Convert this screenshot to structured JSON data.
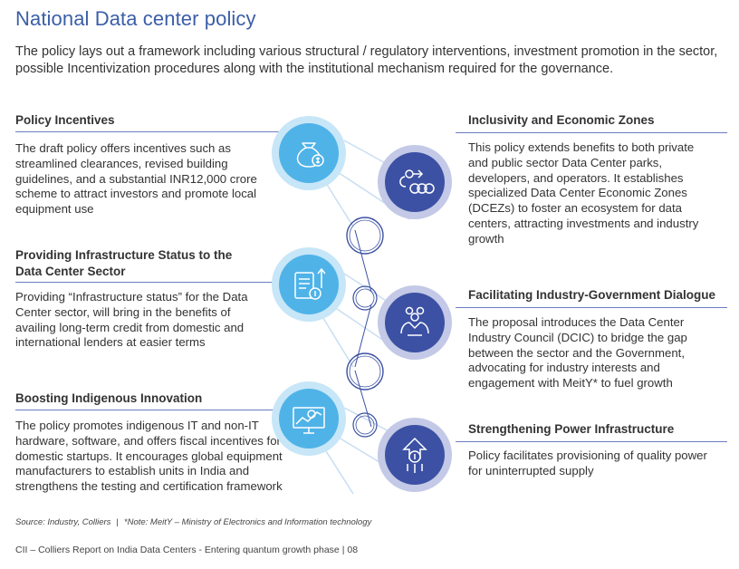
{
  "page": {
    "title": "National Data center policy",
    "intro": "The policy lays out a framework including various structural / regulatory interventions, investment promotion in the sector, possible Incentivization procedures along with the institutional mechanism required for the governance."
  },
  "left_sections": [
    {
      "title": "Policy Incentives",
      "body": "The draft policy offers incentives such as streamlined clearances, revised building guidelines, and a substantial INR12,000 crore scheme to attract investors and promote local equipment use",
      "icon": "money-bag-icon"
    },
    {
      "title": "Providing Infrastructure Status to the Data Center Sector",
      "body": "Providing “Infrastructure status” for the Data Center sector, will bring in the benefits of availing long-term credit from domestic and international lenders at easier terms",
      "icon": "document-growth-icon"
    },
    {
      "title": "Boosting Indigenous Innovation",
      "body": "The policy promotes indigenous IT and non-IT hardware, software, and offers fiscal incentives for domestic startups. It encourages global equipment manufacturers to establish units in India and strengthens the testing and certification framework",
      "icon": "presentation-chart-icon"
    }
  ],
  "right_sections": [
    {
      "title": "Inclusivity and Economic Zones",
      "body": "This policy extends benefits to both private and public sector Data Center parks, developers, and operators. It establishes specialized Data Center Economic Zones (DCEZs) to foster an ecosystem for data centers, attracting investments and industry growth",
      "icon": "money-flow-icon"
    },
    {
      "title": "Facilitating Industry-Government Dialogue",
      "body": "The proposal introduces the Data Center Industry Council (DCIC) to bridge the gap between the sector and the Government, advocating for industry interests and engagement with MeitY* to fuel growth",
      "icon": "handshake-money-icon"
    },
    {
      "title": "Strengthening Power Infrastructure",
      "body": "Policy facilitates provisioning of quality power for uninterrupted supply",
      "icon": "power-growth-icon"
    }
  ],
  "source": {
    "left": "Source: Industry, Colliers",
    "separator": "|",
    "right": "*Note: MeitY – Ministry of Electronics and Information technology"
  },
  "footer": {
    "text": "CII – Colliers Report on India Data Centers - Entering quantum growth phase",
    "separator": "|",
    "page_number": "08"
  },
  "colors": {
    "title_blue": "#3b5ea8",
    "light_blue": "#4fb3e8",
    "light_blue_ring": "#c7e6f7",
    "dark_blue": "#3c51a3",
    "dark_blue_ring": "#c3c9e6",
    "rule": "#6a7ec0"
  }
}
